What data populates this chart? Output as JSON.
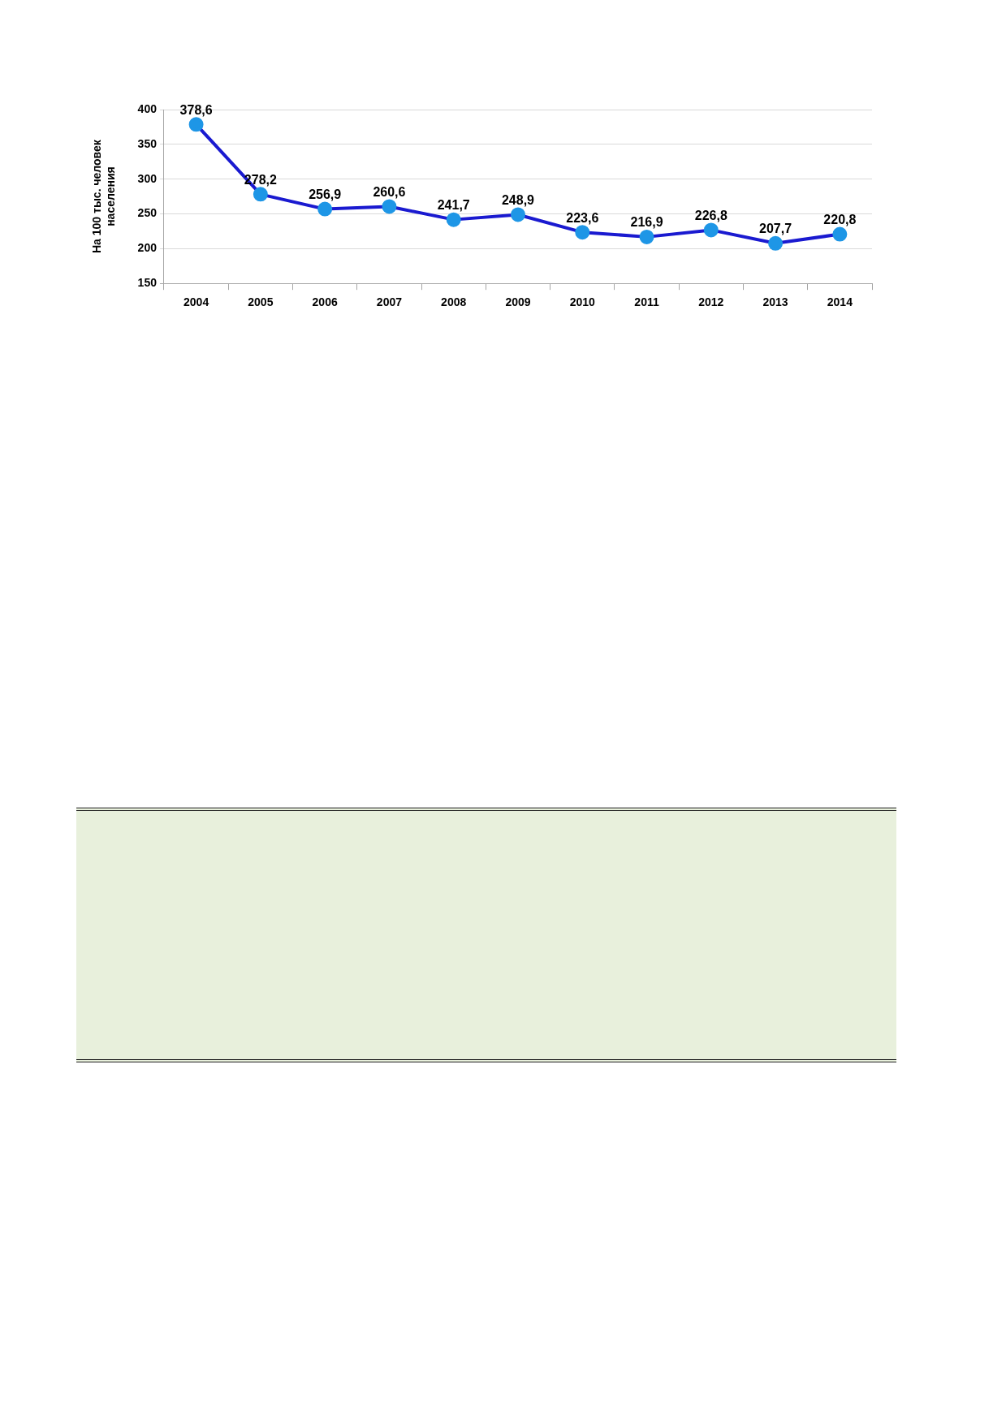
{
  "chart_data": {
    "type": "line",
    "ylabel": "На 100 тыс. человек населения",
    "categories": [
      "2004",
      "2005",
      "2006",
      "2007",
      "2008",
      "2009",
      "2010",
      "2011",
      "2012",
      "2013",
      "2014"
    ],
    "series": [
      {
        "color": "#1a1ad0",
        "colors": [
          "#1e96e6",
          "#1e96e6",
          "#1e96e6",
          "#1e96e6",
          "#1e96e6",
          "#1e96e6",
          "#1e96e6",
          "#1e96e6",
          "#1e96e6",
          "#1e96e6",
          "#1e96e6"
        ],
        "values": [
          378.6,
          278.2,
          256.9,
          260.6,
          241.7,
          248.9,
          223.6,
          216.9,
          226.8,
          207.7,
          220.8
        ],
        "value_labels": [
          "378,6",
          "278,2",
          "256,9",
          "260,6",
          "241,7",
          "248,9",
          "223,6",
          "216,9",
          "226,8",
          "207,7",
          "220,8"
        ]
      }
    ],
    "ylim": [
      150,
      400
    ],
    "yticks": [
      150,
      200,
      250,
      300,
      350,
      400
    ],
    "grid": "y",
    "marker": "circle",
    "line_style": "solid"
  }
}
